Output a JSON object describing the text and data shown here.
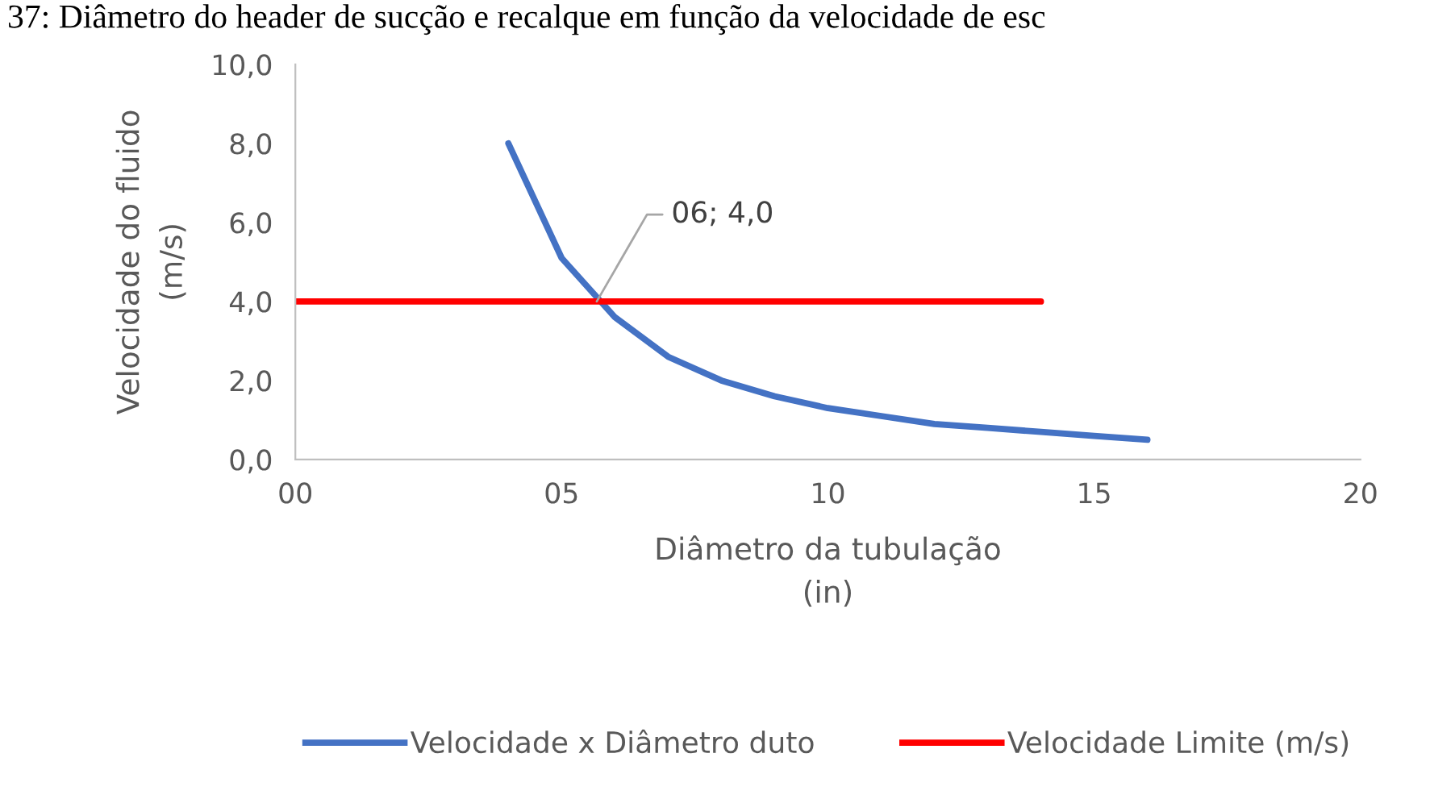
{
  "chart_data": {
    "type": "line",
    "title": "37: Diâmetro do header de sucção e recalque em função da velocidade de esc",
    "xlabel": "Diâmetro da tubulação\n(in)",
    "ylabel": "Velocidade do fluido\n(m/s)",
    "series": [
      {
        "name": "Velocidade x Diâmetro duto",
        "color": "#4472c4",
        "x": [
          4,
          5,
          6,
          7,
          8,
          9,
          10,
          11,
          12,
          13,
          14,
          15,
          16
        ],
        "values": [
          8.0,
          5.1,
          3.6,
          2.6,
          2.0,
          1.6,
          1.3,
          1.1,
          0.9,
          0.8,
          0.7,
          0.6,
          0.5
        ]
      },
      {
        "name": "Velocidade Limite (m/s)",
        "color": "#ff0000",
        "x": [
          0,
          14
        ],
        "values": [
          4.0,
          4.0
        ]
      }
    ],
    "xlim": [
      0,
      20
    ],
    "xticks": [
      {
        "value": 0,
        "label": "00"
      },
      {
        "value": 5,
        "label": "05"
      },
      {
        "value": 10,
        "label": "10"
      },
      {
        "value": 15,
        "label": "15"
      },
      {
        "value": 20,
        "label": "20"
      }
    ],
    "ylim": [
      0,
      10
    ],
    "yticks": [
      {
        "value": 0,
        "label": "0,0"
      },
      {
        "value": 2,
        "label": "2,0"
      },
      {
        "value": 4,
        "label": "4,0"
      },
      {
        "value": 6,
        "label": "6,0"
      },
      {
        "value": 8,
        "label": "8,0"
      },
      {
        "value": 10,
        "label": "10,0"
      }
    ],
    "annotations": [
      {
        "text": "06; 4,0",
        "x": 5.66,
        "y": 4.0
      }
    ],
    "grid": false,
    "legend": "bottom",
    "marker": "none",
    "line_style": "solid"
  }
}
